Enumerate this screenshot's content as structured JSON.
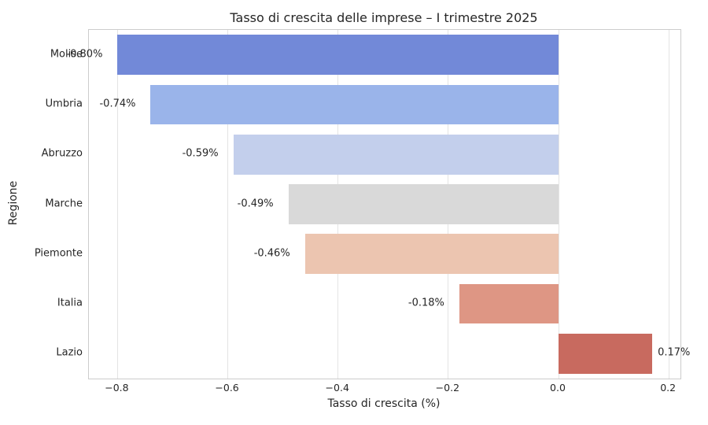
{
  "chart_data": {
    "type": "bar",
    "orientation": "horizontal",
    "title": "Tasso di crescita delle imprese – I trimestre 2025",
    "xlabel": "Tasso di crescita (%)",
    "ylabel": "Regione",
    "categories": [
      "Molise",
      "Umbria",
      "Abruzzo",
      "Marche",
      "Piemonte",
      "Italia",
      "Lazio"
    ],
    "values": [
      -0.8,
      -0.74,
      -0.59,
      -0.49,
      -0.46,
      -0.18,
      0.17
    ],
    "bar_labels": [
      "-0.80%",
      "-0.74%",
      "-0.59%",
      "-0.49%",
      "-0.46%",
      "-0.18%",
      "0.17%"
    ],
    "bar_colors": [
      "#7289d8",
      "#9ab4ea",
      "#c3cfec",
      "#d9d9d9",
      "#ecc5b0",
      "#de9684",
      "#c86a5f"
    ],
    "xlim": [
      -0.852,
      0.2212
    ],
    "xticks": [
      {
        "value": -0.8,
        "label": "−0.8"
      },
      {
        "value": -0.6,
        "label": "−0.6"
      },
      {
        "value": -0.4,
        "label": "−0.4"
      },
      {
        "value": -0.2,
        "label": "−0.2"
      },
      {
        "value": 0.0,
        "label": "0.0"
      },
      {
        "value": 0.2,
        "label": "0.2"
      }
    ],
    "grid": "vertical-on",
    "legend": "none",
    "background_color": "#ffffff",
    "axis_border_color": "#cccccc",
    "grid_color": "#e4e4e4",
    "text_color": "#262626"
  }
}
